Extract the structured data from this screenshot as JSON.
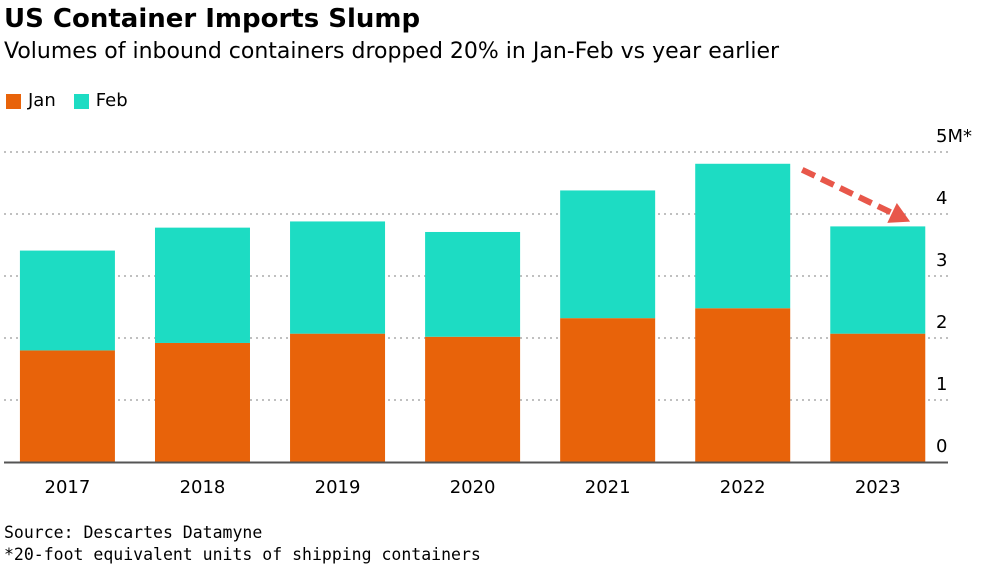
{
  "colors": {
    "jan": "#e8630a",
    "feb": "#1ddcc3",
    "grid": "#9a9a9a",
    "axis": "#555555",
    "arrow": "#e8574a"
  },
  "chart_data": {
    "type": "bar",
    "stacked": true,
    "title": "US Container Imports Slump",
    "subtitle": "Volumes of inbound containers dropped 20% in Jan-Feb vs year earlier",
    "categories": [
      "2017",
      "2018",
      "2019",
      "2020",
      "2021",
      "2022",
      "2023"
    ],
    "series": [
      {
        "name": "Jan",
        "values": [
          1.8,
          1.92,
          2.07,
          2.02,
          2.32,
          2.48,
          2.07
        ]
      },
      {
        "name": "Feb",
        "values": [
          1.61,
          1.86,
          1.81,
          1.69,
          2.06,
          2.33,
          1.73
        ]
      }
    ],
    "ylim": [
      0,
      5
    ],
    "y_ticks": [
      "0",
      "1",
      "2",
      "3",
      "4",
      "5M*"
    ],
    "y_axis_side": "right",
    "grid": true,
    "legend_position": "top-left",
    "annotation": "arrow from 2022 bar top down to 2023 bar top",
    "source": "Source: Descartes Datamyne",
    "footnote": "*20-foot equivalent units of shipping containers"
  }
}
